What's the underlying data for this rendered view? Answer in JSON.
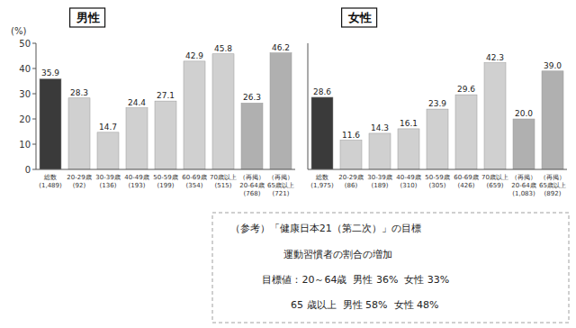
{
  "chart_data": [
    {
      "type": "bar",
      "title": "男性",
      "ylabel": "(%)",
      "categories": [
        "総数\n(1,489)",
        "20-29歳\n(92)",
        "30-39歳\n(136)",
        "40-49歳\n(193)",
        "50-59歳\n(199)",
        "60-69歳\n(354)",
        "70歳以上\n(515)",
        "（再掲）\n20-64歳\n(768)",
        "（再掲）\n65歳以上\n(721)"
      ],
      "values": [
        35.9,
        28.3,
        14.7,
        24.4,
        27.1,
        42.9,
        45.8,
        26.3,
        46.2
      ],
      "colors": [
        "#3a3a3a",
        "#d0d0d0",
        "#d0d0d0",
        "#d0d0d0",
        "#d0d0d0",
        "#d0d0d0",
        "#d0d0d0",
        "#b0b0b0",
        "#b0b0b0"
      ],
      "ylim": [
        0,
        50
      ],
      "yticks": [
        0,
        10,
        20,
        30,
        40,
        50
      ],
      "data_labels": true
    },
    {
      "type": "bar",
      "title": "女性",
      "categories": [
        "総数\n(1,975)",
        "20-29歳\n(86)",
        "30-39歳\n(189)",
        "40-49歳\n(310)",
        "50-59歳\n(305)",
        "60-69歳\n(426)",
        "70歳以上\n(659)",
        "（再掲）\n20-64歳\n(1,083)",
        "（再掲）\n65歳以上\n(892)"
      ],
      "values": [
        28.6,
        11.6,
        14.3,
        16.1,
        23.9,
        29.6,
        42.3,
        20.0,
        39.0
      ],
      "value_labels": [
        "28.6",
        "11.6",
        "14.3",
        "16.1",
        "23.9",
        "29.6",
        "42.3",
        "20.0",
        "39.0"
      ],
      "colors": [
        "#3a3a3a",
        "#d0d0d0",
        "#d0d0d0",
        "#d0d0d0",
        "#d0d0d0",
        "#d0d0d0",
        "#d0d0d0",
        "#b0b0b0",
        "#b0b0b0"
      ],
      "ylim": [
        0,
        50
      ],
      "data_labels": true,
      "tick_labels": "x",
      "annotations": [
        "（参考）「健康日本21（第二次）」の目標",
        "運動習慣者の割合の増加",
        "目標値：20～64歳  男性 36%  女性 33%",
        "65 歳以上  男性 58%  女性 48%"
      ]
    }
  ]
}
